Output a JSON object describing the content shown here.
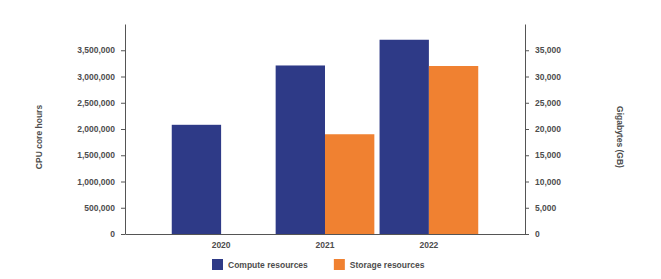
{
  "chart_data": {
    "type": "bar",
    "categories": [
      "2020",
      "2021",
      "2022"
    ],
    "series": [
      {
        "name": "Compute resources",
        "color": "#2e3a87",
        "values": [
          2080000,
          3210000,
          3700000
        ]
      },
      {
        "name": "Storage resources",
        "color": "#f08131",
        "values": [
          null,
          19000,
          32000
        ],
        "axis": "y2"
      }
    ],
    "ylabel": "CPU core hours",
    "y2label": "Gigabytes (GB)",
    "ylim": [
      0,
      4000000
    ],
    "yticks": [
      0,
      {
        "value": 500000,
        "label": "500,000"
      },
      {
        "value": 1000000,
        "label": "1,000,000"
      },
      {
        "value": 1500000,
        "label": "1,500,000"
      },
      {
        "value": 2000000,
        "label": "2,000,000"
      },
      {
        "value": 2500000,
        "label": "2,500,000"
      },
      {
        "value": 3000000,
        "label": "3,000,000"
      },
      {
        "value": 3500000,
        "label": "3,500,000"
      }
    ],
    "y2lim": [
      0,
      40000
    ],
    "y2ticks": [
      0,
      {
        "value": 5000,
        "label": "5,000"
      },
      {
        "value": 10000,
        "label": "10,000"
      },
      {
        "value": 15000,
        "label": "15,000"
      },
      {
        "value": 20000,
        "label": "20,000"
      },
      {
        "value": 25000,
        "label": "25,000"
      },
      {
        "value": 30000,
        "label": "30,000"
      },
      {
        "value": 35000,
        "label": "35,000"
      }
    ],
    "legend": "bottom",
    "grid": false
  }
}
